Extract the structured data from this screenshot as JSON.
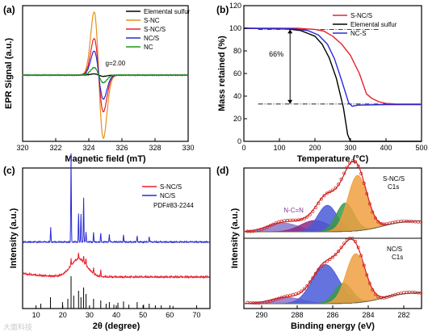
{
  "panels": {
    "a": {
      "letter": "(a)"
    },
    "b": {
      "letter": "(b)"
    },
    "c": {
      "letter": "(c)"
    },
    "d": {
      "letter": "(d)"
    }
  },
  "watermark": "大面科技",
  "chart_data": [
    {
      "panel": "(a)",
      "type": "line",
      "xlabel": "Magnetic field (mT)",
      "ylabel": "EPR Signal (a.u.)",
      "xlim": [
        320,
        330
      ],
      "xticks": [
        320,
        322,
        324,
        326,
        328,
        330
      ],
      "y_ticks_shown": false,
      "legend_position": "top-right",
      "annotation": "g=2.00",
      "grid": false,
      "center_field": 324.6,
      "series": [
        {
          "name": "Elemental sulfur",
          "color": "#000000",
          "peak_amplitude": 0.02
        },
        {
          "name": "S-NC",
          "color": "#e8901c",
          "peak_amplitude": 1.0
        },
        {
          "name": "S-NC/S",
          "color": "#e8202a",
          "peak_amplitude": 0.58
        },
        {
          "name": "NC/S",
          "color": "#2a2ad8",
          "peak_amplitude": 0.38
        },
        {
          "name": "NC",
          "color": "#1a9a1a",
          "peak_amplitude": 0.12
        }
      ]
    },
    {
      "panel": "(b)",
      "type": "line",
      "xlabel": "Temperature (°C)",
      "ylabel": "Mass retained (%)",
      "xlim": [
        0,
        500
      ],
      "ylim": [
        0,
        120
      ],
      "xticks": [
        0,
        100,
        200,
        300,
        400,
        500
      ],
      "yticks": [
        0,
        20,
        40,
        60,
        80,
        100,
        120
      ],
      "legend_position": "top-right",
      "annotation": "66%",
      "annotation_span_y": [
        33,
        99
      ],
      "annotation_x": 130,
      "grid": false,
      "series": [
        {
          "name": "S-NC/S",
          "color": "#e8202a",
          "x": [
            0,
            150,
            200,
            225,
            250,
            275,
            300,
            325,
            345,
            360,
            380,
            400,
            430,
            500
          ],
          "y": [
            100,
            100,
            99,
            97.5,
            93,
            86,
            76,
            60,
            42,
            38,
            35,
            33.5,
            33,
            33
          ]
        },
        {
          "name": "Elemental sulfur",
          "color": "#000000",
          "x": [
            0,
            120,
            160,
            200,
            220,
            240,
            260,
            280,
            292,
            300,
            500
          ],
          "y": [
            100,
            99.5,
            98,
            93,
            86,
            74,
            56,
            30,
            6,
            0,
            0
          ]
        },
        {
          "name": "NC-S",
          "color": "#2a2ad8",
          "x": [
            0,
            140,
            180,
            210,
            235,
            255,
            275,
            295,
            305,
            320,
            400,
            500
          ],
          "y": [
            100,
            99.5,
            98,
            94,
            86,
            73,
            54,
            34,
            31,
            32,
            32.5,
            32.5
          ]
        }
      ]
    },
    {
      "panel": "(c)",
      "type": "line",
      "xlabel": "2θ (degree)",
      "ylabel": "Intensity (a.u.)",
      "xlim": [
        5,
        75
      ],
      "xticks": [
        10,
        20,
        30,
        40,
        50,
        60,
        70
      ],
      "y_ticks_shown": false,
      "legend_position": "top-right",
      "reference_label": "PDF#83-2244",
      "grid": false,
      "series": [
        {
          "name": "S-NC/S",
          "color": "#e8202a",
          "baseline_fraction": 0.78,
          "broad_hump_center": 26,
          "peak_positions": [
            23.1,
            25.9,
            27.8,
            28.7,
            31.5,
            34.2
          ]
        },
        {
          "name": "NC/S",
          "color": "#2a2ad8",
          "baseline_fraction": 0.53,
          "peak_positions": [
            15.5,
            23.1,
            25.9,
            26.8,
            27.8,
            28.7,
            31.5,
            34.2,
            37.4,
            42.7,
            47.8,
            52.3
          ]
        },
        {
          "name": "reference",
          "color": "#000000",
          "peak_positions": [
            11.8,
            15.4,
            19.9,
            21.9,
            23.1,
            24.1,
            25.9,
            26.8,
            27.8,
            28.7,
            31.5,
            34.2,
            36.2,
            37.4,
            39.1,
            40.6,
            42.7,
            44.7,
            47.8,
            50.2,
            52.3,
            54.6,
            56.8,
            61.2
          ],
          "peak_heights": [
            0.15,
            0.35,
            0.2,
            0.3,
            1.0,
            0.4,
            0.55,
            0.35,
            0.65,
            0.45,
            0.3,
            0.25,
            0.15,
            0.2,
            0.12,
            0.18,
            0.22,
            0.12,
            0.2,
            0.12,
            0.15,
            0.1,
            0.1,
            0.08
          ]
        }
      ]
    },
    {
      "panel": "(d)",
      "type": "line",
      "xlabel": "Binding energy (eV)",
      "ylabel": "Intensity (a.u.)",
      "xlim": [
        291,
        281
      ],
      "xticks": [
        290,
        288,
        286,
        284,
        282
      ],
      "y_ticks_shown": false,
      "grid": false,
      "subplots": [
        {
          "label_line1": "S-NC/S",
          "label_line2": "C1s",
          "annotation": "N-C=N",
          "components": [
            {
              "center": 288.8,
              "height": 0.14,
              "width": 0.9,
              "color": "#8c78c8"
            },
            {
              "center": 287.0,
              "height": 0.18,
              "width": 0.8,
              "color": "#8a2a8a"
            },
            {
              "center": 286.3,
              "height": 0.42,
              "width": 0.55,
              "color": "#4a5ad8"
            },
            {
              "center": 285.3,
              "height": 0.45,
              "width": 0.5,
              "color": "#3a9a4a"
            },
            {
              "center": 284.6,
              "height": 0.88,
              "width": 0.55,
              "color": "#f0a040"
            }
          ]
        },
        {
          "label_line1": "NC/S",
          "label_line2": "C1s",
          "components": [
            {
              "center": 288.6,
              "height": 0.1,
              "width": 0.9,
              "color": "#8c78c8"
            },
            {
              "center": 286.4,
              "height": 0.62,
              "width": 0.75,
              "color": "#4a5ad8"
            },
            {
              "center": 285.4,
              "height": 0.32,
              "width": 0.5,
              "color": "#3a9a4a"
            },
            {
              "center": 284.7,
              "height": 0.78,
              "width": 0.55,
              "color": "#f0a040"
            }
          ]
        }
      ]
    }
  ]
}
